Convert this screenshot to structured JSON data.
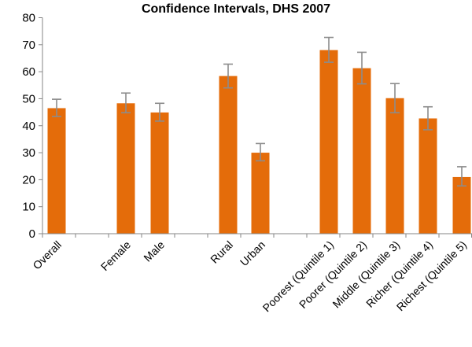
{
  "chart_data": {
    "type": "bar",
    "title": "Confidence Intervals, DHS 2007",
    "xlabel": "",
    "ylabel": "",
    "ylim": [
      0,
      80
    ],
    "yticks": [
      "0",
      "10",
      "20",
      "30",
      "40",
      "50",
      "60",
      "70",
      "80"
    ],
    "grid": false,
    "bar_color": "#E46C0A",
    "error_bar_color": "#8C8C8C",
    "categories": [
      "Overall",
      "Female",
      "Male",
      "Rural",
      "Urban",
      "Poorest (Quintile 1)",
      "Poorer (Quintile 2)",
      "Middle (Quintile 3)",
      "Richer (Quintile 4)",
      "Richest (Quintile 5)"
    ],
    "values": [
      46.5,
      48.3,
      44.9,
      58.4,
      30.0,
      68.0,
      61.3,
      50.2,
      42.7,
      21.0
    ],
    "error_low": [
      43.4,
      44.8,
      41.7,
      54.0,
      27.0,
      63.5,
      55.5,
      44.8,
      38.5,
      17.7
    ],
    "error_high": [
      49.8,
      52.1,
      48.3,
      62.8,
      33.4,
      72.7,
      67.2,
      55.6,
      47.0,
      24.8
    ]
  }
}
